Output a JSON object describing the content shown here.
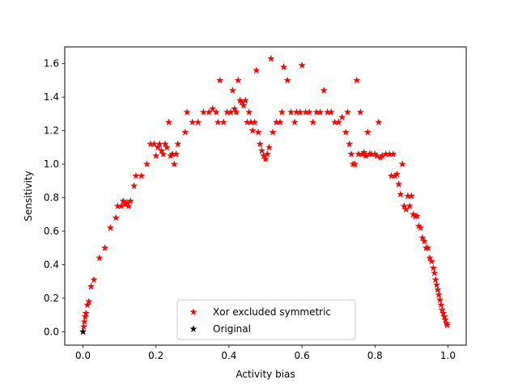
{
  "chart_data": {
    "type": "scatter",
    "title": "",
    "xlabel": "Activity bias",
    "ylabel": "Sensitivity",
    "xlim": [
      -0.05,
      1.05
    ],
    "ylim": [
      -0.08,
      1.7
    ],
    "xticks": [
      "0.0",
      "0.2",
      "0.4",
      "0.6",
      "0.8",
      "1.0"
    ],
    "xtick_values": [
      0.0,
      0.2,
      0.4,
      0.6,
      0.8,
      1.0
    ],
    "yticks": [
      "0.0",
      "0.2",
      "0.4",
      "0.6",
      "0.8",
      "1.0",
      "1.2",
      "1.4",
      "1.6"
    ],
    "ytick_values": [
      0.0,
      0.2,
      0.4,
      0.6,
      0.8,
      1.0,
      1.2,
      1.4,
      1.6
    ],
    "grid": false,
    "legend_position": "lower-center",
    "series": [
      {
        "name": "Xor excluded symmetric",
        "color": "#ff0000",
        "marker": "star",
        "points": [
          [
            0.0,
            0.0
          ],
          [
            0.002,
            0.03
          ],
          [
            0.004,
            0.06
          ],
          [
            0.006,
            0.09
          ],
          [
            0.008,
            0.11
          ],
          [
            0.012,
            0.16
          ],
          [
            0.016,
            0.18
          ],
          [
            0.022,
            0.27
          ],
          [
            0.03,
            0.31
          ],
          [
            0.045,
            0.44
          ],
          [
            0.06,
            0.5
          ],
          [
            0.075,
            0.62
          ],
          [
            0.09,
            0.68
          ],
          [
            0.095,
            0.75
          ],
          [
            0.105,
            0.75
          ],
          [
            0.11,
            0.78
          ],
          [
            0.115,
            0.76
          ],
          [
            0.12,
            0.77
          ],
          [
            0.125,
            0.75
          ],
          [
            0.13,
            0.78
          ],
          [
            0.14,
            0.87
          ],
          [
            0.145,
            0.93
          ],
          [
            0.16,
            0.93
          ],
          [
            0.175,
            1.0
          ],
          [
            0.185,
            1.12
          ],
          [
            0.195,
            1.12
          ],
          [
            0.2,
            1.05
          ],
          [
            0.205,
            1.1
          ],
          [
            0.21,
            1.12
          ],
          [
            0.215,
            1.08
          ],
          [
            0.22,
            1.06
          ],
          [
            0.225,
            1.12
          ],
          [
            0.23,
            1.1
          ],
          [
            0.235,
            1.25
          ],
          [
            0.24,
            1.05
          ],
          [
            0.245,
            1.06
          ],
          [
            0.25,
            1.0
          ],
          [
            0.255,
            1.06
          ],
          [
            0.26,
            1.12
          ],
          [
            0.28,
            1.19
          ],
          [
            0.285,
            1.31
          ],
          [
            0.3,
            1.25
          ],
          [
            0.315,
            1.25
          ],
          [
            0.33,
            1.31
          ],
          [
            0.345,
            1.31
          ],
          [
            0.355,
            1.33
          ],
          [
            0.365,
            1.31
          ],
          [
            0.37,
            1.25
          ],
          [
            0.375,
            1.5
          ],
          [
            0.385,
            1.25
          ],
          [
            0.395,
            1.31
          ],
          [
            0.405,
            1.31
          ],
          [
            0.41,
            1.44
          ],
          [
            0.415,
            1.33
          ],
          [
            0.42,
            1.31
          ],
          [
            0.425,
            1.5
          ],
          [
            0.43,
            1.38
          ],
          [
            0.435,
            1.37
          ],
          [
            0.44,
            1.35
          ],
          [
            0.445,
            1.38
          ],
          [
            0.45,
            1.25
          ],
          [
            0.455,
            1.31
          ],
          [
            0.46,
            1.25
          ],
          [
            0.465,
            1.2
          ],
          [
            0.47,
            1.25
          ],
          [
            0.475,
            1.56
          ],
          [
            0.48,
            1.19
          ],
          [
            0.485,
            1.12
          ],
          [
            0.49,
            1.08
          ],
          [
            0.495,
            1.05
          ],
          [
            0.5,
            1.03
          ],
          [
            0.505,
            1.06
          ],
          [
            0.51,
            1.1
          ],
          [
            0.515,
            1.63
          ],
          [
            0.52,
            1.19
          ],
          [
            0.53,
            1.25
          ],
          [
            0.54,
            1.25
          ],
          [
            0.545,
            1.31
          ],
          [
            0.55,
            1.58
          ],
          [
            0.56,
            1.5
          ],
          [
            0.57,
            1.31
          ],
          [
            0.58,
            1.25
          ],
          [
            0.585,
            1.31
          ],
          [
            0.595,
            1.31
          ],
          [
            0.6,
            1.59
          ],
          [
            0.61,
            1.31
          ],
          [
            0.62,
            1.31
          ],
          [
            0.63,
            1.25
          ],
          [
            0.64,
            1.31
          ],
          [
            0.65,
            1.31
          ],
          [
            0.66,
            1.44
          ],
          [
            0.67,
            1.31
          ],
          [
            0.68,
            1.31
          ],
          [
            0.69,
            1.25
          ],
          [
            0.7,
            1.25
          ],
          [
            0.71,
            1.28
          ],
          [
            0.72,
            1.19
          ],
          [
            0.725,
            1.31
          ],
          [
            0.73,
            1.12
          ],
          [
            0.735,
            1.06
          ],
          [
            0.74,
            1.0
          ],
          [
            0.745,
            1.0
          ],
          [
            0.75,
            1.5
          ],
          [
            0.755,
            1.06
          ],
          [
            0.76,
            1.31
          ],
          [
            0.765,
            1.06
          ],
          [
            0.77,
            1.07
          ],
          [
            0.775,
            1.05
          ],
          [
            0.78,
            1.19
          ],
          [
            0.785,
            1.06
          ],
          [
            0.79,
            1.06
          ],
          [
            0.8,
            1.06
          ],
          [
            0.805,
            1.05
          ],
          [
            0.81,
            1.25
          ],
          [
            0.815,
            1.04
          ],
          [
            0.82,
            1.05
          ],
          [
            0.83,
            1.06
          ],
          [
            0.84,
            1.06
          ],
          [
            0.845,
            0.93
          ],
          [
            0.85,
            1.06
          ],
          [
            0.855,
            0.93
          ],
          [
            0.86,
            0.94
          ],
          [
            0.865,
            0.88
          ],
          [
            0.87,
            0.82
          ],
          [
            0.875,
            1.0
          ],
          [
            0.88,
            0.75
          ],
          [
            0.885,
            0.73
          ],
          [
            0.89,
            0.81
          ],
          [
            0.895,
            0.75
          ],
          [
            0.9,
            0.81
          ],
          [
            0.905,
            0.7
          ],
          [
            0.91,
            0.69
          ],
          [
            0.915,
            0.69
          ],
          [
            0.92,
            0.63
          ],
          [
            0.925,
            0.62
          ],
          [
            0.93,
            0.56
          ],
          [
            0.935,
            0.54
          ],
          [
            0.94,
            0.5
          ],
          [
            0.945,
            0.5
          ],
          [
            0.95,
            0.44
          ],
          [
            0.955,
            0.42
          ],
          [
            0.96,
            0.38
          ],
          [
            0.963,
            0.35
          ],
          [
            0.966,
            0.31
          ],
          [
            0.969,
            0.28
          ],
          [
            0.972,
            0.25
          ],
          [
            0.975,
            0.22
          ],
          [
            0.978,
            0.19
          ],
          [
            0.981,
            0.16
          ],
          [
            0.984,
            0.13
          ],
          [
            0.987,
            0.11
          ],
          [
            0.99,
            0.09
          ],
          [
            0.993,
            0.07
          ],
          [
            0.996,
            0.05
          ],
          [
            0.998,
            0.04
          ]
        ]
      },
      {
        "name": "Original",
        "color": "#000000",
        "marker": "star",
        "points": [
          [
            0.0,
            0.0
          ]
        ]
      }
    ]
  }
}
